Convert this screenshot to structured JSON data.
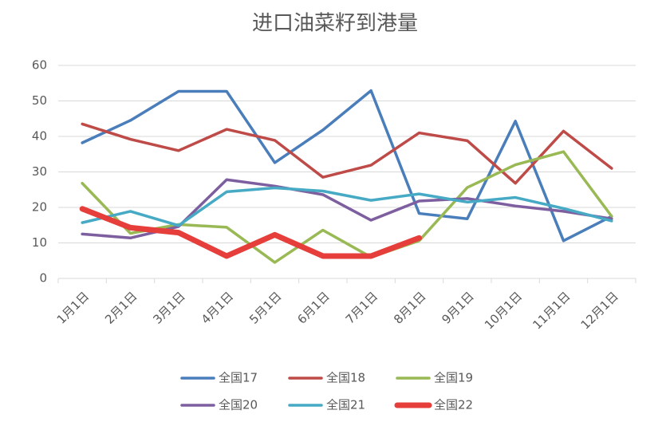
{
  "chart_data": {
    "type": "line",
    "title": "进口油菜籽到港量",
    "categories": [
      "1月1日",
      "2月1日",
      "3月1日",
      "4月1日",
      "5月1日",
      "6月1日",
      "7月1日",
      "8月1日",
      "9月1日",
      "10月1日",
      "11月1日",
      "12月1日"
    ],
    "series": [
      {
        "name": "全国17",
        "color": "#4a7ebb",
        "values": [
          38.2,
          44.5,
          52.7,
          52.7,
          32.6,
          41.8,
          52.9,
          18.3,
          16.8,
          44.3,
          10.6,
          17.5
        ]
      },
      {
        "name": "全国18",
        "color": "#be4b48",
        "values": [
          43.5,
          39.2,
          36,
          42,
          38.9,
          28.5,
          31.9,
          41,
          38.8,
          26.8,
          41.5,
          31
        ]
      },
      {
        "name": "全国19",
        "color": "#98b954",
        "values": [
          26.8,
          12.7,
          15.2,
          14.4,
          4.5,
          13.6,
          6,
          10.6,
          25.6,
          32,
          35.7,
          17.5
        ]
      },
      {
        "name": "全国20",
        "color": "#7d5fa0",
        "values": [
          12.5,
          11.4,
          14.6,
          27.8,
          26,
          23.6,
          16.4,
          21.8,
          22.5,
          20.4,
          18.9,
          16.8
        ]
      },
      {
        "name": "全国21",
        "color": "#46aac5",
        "values": [
          15.7,
          18.9,
          14.9,
          24.4,
          25.5,
          24.6,
          22,
          23.8,
          21.5,
          22.8,
          19.7,
          16.2
        ]
      },
      {
        "name": "全国22",
        "color": "#e63e3a",
        "values": [
          19.6,
          14.3,
          12.9,
          6.3,
          12.3,
          6.3,
          6.3,
          11.4,
          null,
          null,
          null,
          null
        ]
      }
    ],
    "ylim": [
      0,
      60
    ],
    "yticks": [
      0,
      10,
      20,
      30,
      40,
      50,
      60
    ],
    "grid": true
  }
}
